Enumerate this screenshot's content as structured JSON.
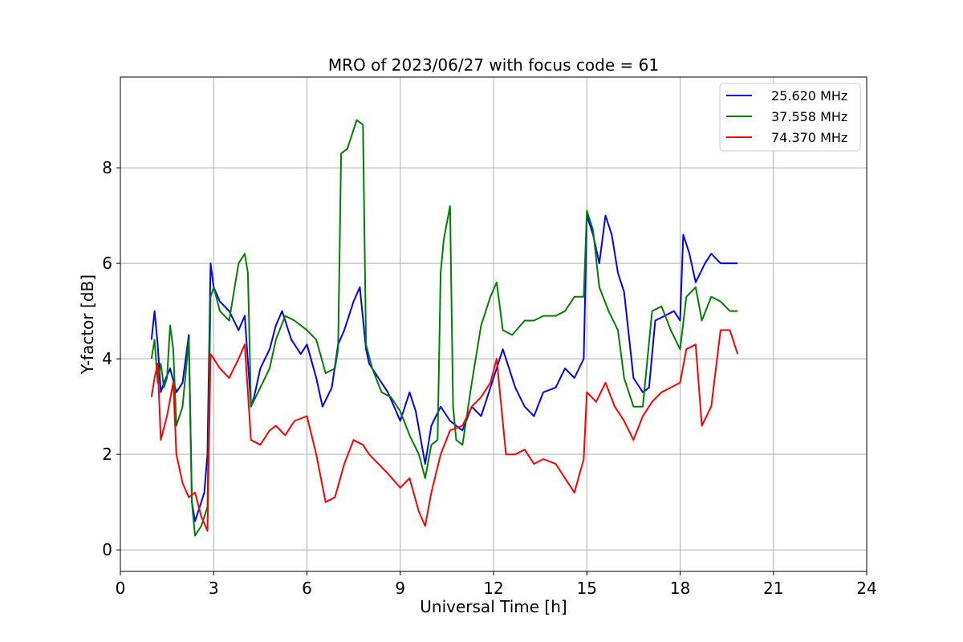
{
  "chart_data": {
    "type": "line",
    "title": "MRO of 2023/06/27 with focus code = 61",
    "xlabel": "Universal Time [h]",
    "ylabel": "Y-factor [dB]",
    "xlim": [
      0,
      24
    ],
    "ylim": [
      -0.45,
      9.9
    ],
    "xticks": [
      0,
      3,
      6,
      9,
      12,
      15,
      18,
      21,
      24
    ],
    "yticks": [
      0,
      2,
      4,
      6,
      8
    ],
    "grid": true,
    "legend_position": "top-right",
    "series": [
      {
        "name": "25.620 MHz",
        "color": "#0000ff",
        "x": [
          1.0,
          1.1,
          1.2,
          1.3,
          1.4,
          1.6,
          1.8,
          2.0,
          2.2,
          2.3,
          2.4,
          2.5,
          2.6,
          2.7,
          2.8,
          2.9,
          3.0,
          3.2,
          3.5,
          3.8,
          4.0,
          4.2,
          4.3,
          4.5,
          4.8,
          5.0,
          5.2,
          5.5,
          5.8,
          6.0,
          6.3,
          6.5,
          6.8,
          7.0,
          7.2,
          7.5,
          7.7,
          7.9,
          8.0,
          8.3,
          8.6,
          9.0,
          9.3,
          9.5,
          9.8,
          10.0,
          10.3,
          10.6,
          11.0,
          11.3,
          11.6,
          12.0,
          12.3,
          12.7,
          13.0,
          13.3,
          13.6,
          14.0,
          14.3,
          14.6,
          14.9,
          15.0,
          15.2,
          15.4,
          15.6,
          15.8,
          16.0,
          16.2,
          16.5,
          16.8,
          17.0,
          17.2,
          17.5,
          17.8,
          18.0,
          18.1,
          18.3,
          18.5,
          18.8,
          19.0,
          19.3,
          19.6,
          19.85
        ],
        "y": [
          4.4,
          5.0,
          4.3,
          3.3,
          3.5,
          3.8,
          3.3,
          3.5,
          4.5,
          1.0,
          0.6,
          0.8,
          1.0,
          1.2,
          2.0,
          6.0,
          5.5,
          5.2,
          5.0,
          4.6,
          4.9,
          3.0,
          3.2,
          3.8,
          4.2,
          4.7,
          5.0,
          4.4,
          4.1,
          4.3,
          3.6,
          3.0,
          3.4,
          4.3,
          4.6,
          5.2,
          5.5,
          4.2,
          3.9,
          3.6,
          3.3,
          2.7,
          3.3,
          2.9,
          1.8,
          2.6,
          3.0,
          2.7,
          2.5,
          3.0,
          2.8,
          3.6,
          4.2,
          3.4,
          3.0,
          2.8,
          3.3,
          3.4,
          3.8,
          3.6,
          4.0,
          7.0,
          6.6,
          6.0,
          7.0,
          6.6,
          5.8,
          5.4,
          3.6,
          3.3,
          3.4,
          4.8,
          4.9,
          5.0,
          4.8,
          6.6,
          6.2,
          5.6,
          6.0,
          6.2,
          6.0,
          6.0,
          6.0
        ]
      },
      {
        "name": "37.558 MHz",
        "color": "#008000",
        "x": [
          1.0,
          1.1,
          1.2,
          1.3,
          1.4,
          1.5,
          1.6,
          1.7,
          1.8,
          2.0,
          2.2,
          2.3,
          2.4,
          2.6,
          2.8,
          2.9,
          3.0,
          3.2,
          3.5,
          3.8,
          4.0,
          4.1,
          4.2,
          4.5,
          4.8,
          5.0,
          5.3,
          5.6,
          6.0,
          6.3,
          6.6,
          6.9,
          7.0,
          7.1,
          7.3,
          7.6,
          7.8,
          7.9,
          8.1,
          8.4,
          8.7,
          9.0,
          9.3,
          9.6,
          9.8,
          10.0,
          10.2,
          10.3,
          10.4,
          10.6,
          10.7,
          10.8,
          11.0,
          11.3,
          11.6,
          11.9,
          12.1,
          12.3,
          12.6,
          13.0,
          13.3,
          13.6,
          14.0,
          14.3,
          14.6,
          14.9,
          15.0,
          15.2,
          15.4,
          15.7,
          16.0,
          16.2,
          16.5,
          16.8,
          17.1,
          17.4,
          17.7,
          18.0,
          18.2,
          18.5,
          18.7,
          19.0,
          19.3,
          19.6,
          19.85
        ],
        "y": [
          4.0,
          4.4,
          3.5,
          3.9,
          3.4,
          3.6,
          4.7,
          4.2,
          2.6,
          3.0,
          4.4,
          1.0,
          0.3,
          0.5,
          0.9,
          5.3,
          5.5,
          5.0,
          4.8,
          6.0,
          6.2,
          5.8,
          3.0,
          3.4,
          3.8,
          4.4,
          4.9,
          4.8,
          4.6,
          4.4,
          3.7,
          3.8,
          4.2,
          8.3,
          8.4,
          9.0,
          8.9,
          4.3,
          3.8,
          3.3,
          3.2,
          2.9,
          2.4,
          2.0,
          1.5,
          2.2,
          2.3,
          5.8,
          6.5,
          7.2,
          3.0,
          2.3,
          2.2,
          3.5,
          4.7,
          5.3,
          5.6,
          4.6,
          4.5,
          4.8,
          4.8,
          4.9,
          4.9,
          5.0,
          5.3,
          5.3,
          7.1,
          6.7,
          5.5,
          5.0,
          4.6,
          3.6,
          3.0,
          3.0,
          5.0,
          5.1,
          4.6,
          4.2,
          5.3,
          5.5,
          4.8,
          5.3,
          5.2,
          5.0,
          5.0
        ]
      },
      {
        "name": "74.370 MHz",
        "color": "#ff0000",
        "x": [
          1.0,
          1.1,
          1.2,
          1.3,
          1.5,
          1.7,
          1.8,
          2.0,
          2.2,
          2.4,
          2.6,
          2.8,
          2.9,
          3.0,
          3.2,
          3.5,
          3.8,
          4.0,
          4.2,
          4.5,
          4.8,
          5.0,
          5.3,
          5.6,
          6.0,
          6.3,
          6.6,
          6.9,
          7.2,
          7.5,
          7.8,
          8.0,
          8.3,
          8.6,
          9.0,
          9.3,
          9.6,
          9.8,
          10.0,
          10.3,
          10.6,
          11.0,
          11.3,
          11.6,
          11.9,
          12.1,
          12.4,
          12.7,
          13.0,
          13.3,
          13.6,
          14.0,
          14.3,
          14.6,
          14.9,
          15.0,
          15.3,
          15.6,
          15.9,
          16.2,
          16.5,
          16.8,
          17.1,
          17.4,
          17.7,
          18.0,
          18.2,
          18.5,
          18.7,
          19.0,
          19.3,
          19.6,
          19.85
        ],
        "y": [
          3.2,
          3.6,
          3.9,
          2.3,
          2.8,
          3.5,
          2.0,
          1.4,
          1.1,
          1.2,
          0.7,
          0.4,
          4.1,
          4.0,
          3.8,
          3.6,
          4.0,
          4.3,
          2.3,
          2.2,
          2.5,
          2.6,
          2.4,
          2.7,
          2.8,
          2.0,
          1.0,
          1.1,
          1.8,
          2.3,
          2.2,
          2.0,
          1.8,
          1.6,
          1.3,
          1.5,
          0.8,
          0.5,
          1.2,
          2.0,
          2.5,
          2.6,
          3.0,
          3.2,
          3.5,
          4.0,
          2.0,
          2.0,
          2.1,
          1.8,
          1.9,
          1.8,
          1.5,
          1.2,
          1.9,
          3.3,
          3.1,
          3.5,
          3.0,
          2.7,
          2.3,
          2.8,
          3.1,
          3.3,
          3.4,
          3.5,
          4.2,
          4.3,
          2.6,
          3.0,
          4.6,
          4.6,
          4.1
        ]
      }
    ]
  }
}
